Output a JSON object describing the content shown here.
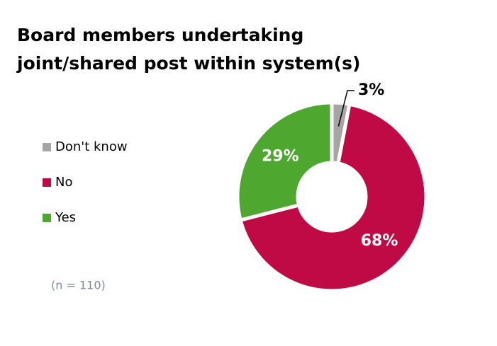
{
  "chart_data": {
    "type": "pie",
    "title": "Board members undertaking joint/shared post within system(s)",
    "categories": [
      "Don't know",
      "No",
      "Yes"
    ],
    "values": [
      3,
      68,
      29
    ],
    "value_labels": [
      "3%",
      "68%",
      "29%"
    ],
    "colors": [
      "#a5a5a5",
      "#c00a45",
      "#4ea72e"
    ],
    "donut": true,
    "legend": "left",
    "annotation": "(n = 110)"
  }
}
